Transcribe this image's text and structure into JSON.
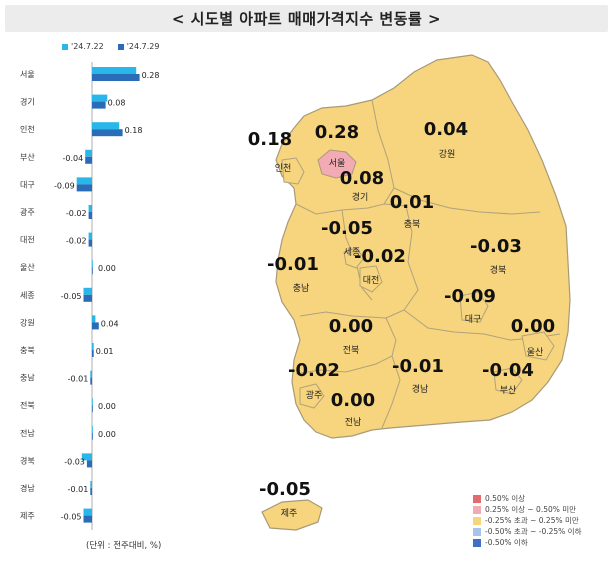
{
  "header": {
    "title": "< 시도별 아파트 매매가격지수 변동률 >"
  },
  "unit_note": "(단위 : 전주대비, %)",
  "colors": {
    "prev": "#29b6e8",
    "curr": "#2a6cb8",
    "map_fill": "#f7d57e",
    "map_stroke": "#a89a78",
    "seoul_fill": "#f2aab4"
  },
  "chart_data": [
    {
      "type": "bar",
      "orientation": "horizontal",
      "categories": [
        "서울",
        "경기",
        "인천",
        "부산",
        "대구",
        "광주",
        "대전",
        "울산",
        "세종",
        "강원",
        "충북",
        "충남",
        "전북",
        "전남",
        "경북",
        "경남",
        "제주"
      ],
      "series": [
        {
          "name": "'24.7.22",
          "values": [
            0.26,
            0.09,
            0.16,
            -0.04,
            -0.09,
            -0.02,
            -0.02,
            0.0,
            -0.05,
            0.02,
            0.01,
            -0.01,
            0.0,
            0.0,
            -0.06,
            -0.01,
            -0.05
          ]
        },
        {
          "name": "'24.7.29",
          "values": [
            0.28,
            0.08,
            0.18,
            -0.04,
            -0.09,
            -0.02,
            -0.02,
            0.0,
            -0.05,
            0.04,
            0.01,
            -0.01,
            0.0,
            0.0,
            -0.03,
            -0.01,
            -0.05
          ]
        }
      ],
      "data_labels": [
        "0.28",
        "0.08",
        "0.18",
        "-0.04",
        "-0.09",
        "-0.02",
        "-0.02",
        "0.00",
        "-0.05",
        "0.04",
        "0.01",
        "-0.01",
        "0.00",
        "0.00",
        "-0.03",
        "-0.01",
        "-0.05"
      ],
      "legend": [
        "'24.7.22",
        "'24.7.29"
      ]
    },
    {
      "type": "choropleth",
      "regions": [
        {
          "name": "서울",
          "value": "0.28"
        },
        {
          "name": "인천",
          "value": "0.18"
        },
        {
          "name": "경기",
          "value": "0.08"
        },
        {
          "name": "강원",
          "value": "0.04"
        },
        {
          "name": "충북",
          "value": "0.01"
        },
        {
          "name": "세종",
          "value": "-0.05"
        },
        {
          "name": "충남",
          "value": "-0.01"
        },
        {
          "name": "대전",
          "value": "-0.02"
        },
        {
          "name": "경북",
          "value": "-0.03"
        },
        {
          "name": "대구",
          "value": "-0.09"
        },
        {
          "name": "전북",
          "value": "0.00"
        },
        {
          "name": "울산",
          "value": "0.00"
        },
        {
          "name": "광주",
          "value": "-0.02"
        },
        {
          "name": "경남",
          "value": "-0.01"
        },
        {
          "name": "부산",
          "value": "-0.04"
        },
        {
          "name": "전남",
          "value": "0.00"
        },
        {
          "name": "제주",
          "value": "-0.05"
        }
      ],
      "legend": [
        {
          "label": "0.50% 이상",
          "color": "#e46a6e"
        },
        {
          "label": "0.25% 이상 ~ 0.50% 미만",
          "color": "#f2aab4"
        },
        {
          "label": "-0.25% 초과 ~ 0.25% 미만",
          "color": "#f7d57e"
        },
        {
          "label": "-0.50% 초과 ~ -0.25% 이하",
          "color": "#a9c4e8"
        },
        {
          "label": "-0.50% 이하",
          "color": "#3f6fc4"
        }
      ]
    }
  ]
}
